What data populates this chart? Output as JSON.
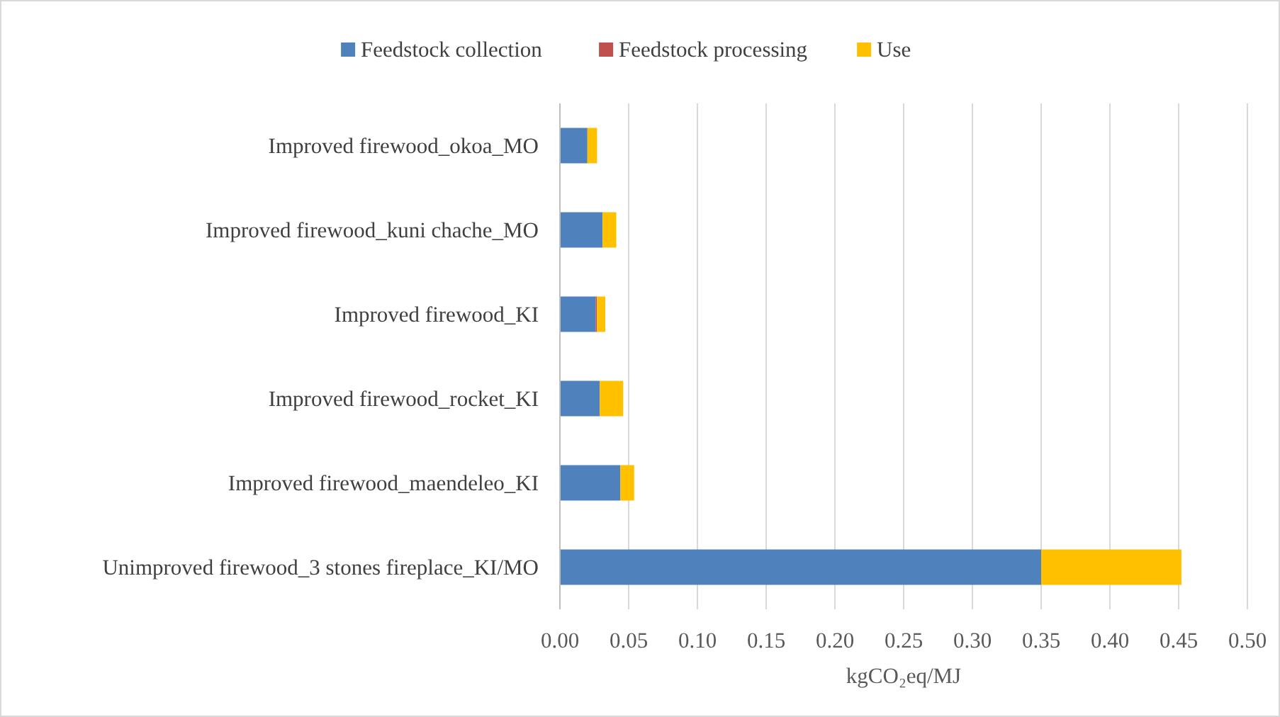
{
  "chart_data": {
    "type": "bar",
    "orientation": "horizontal",
    "stacked": true,
    "categories": [
      "Improved firewood_okoa_MO",
      "Improved firewood_kuni chache_MO",
      "Improved firewood_KI",
      "Improved firewood_rocket_KI",
      "Improved firewood_maendeleo_KI",
      "Unimproved firewood_3 stones fireplace_KI/MO"
    ],
    "series": [
      {
        "name": "Feedstock collection",
        "color": "#4f81bd",
        "values": [
          0.02,
          0.031,
          0.026,
          0.029,
          0.044,
          0.35
        ]
      },
      {
        "name": "Feedstock processing",
        "color": "#c0504d",
        "values": [
          0,
          0,
          0.001,
          0,
          0,
          0
        ]
      },
      {
        "name": "Use",
        "color": "#ffc000",
        "values": [
          0.007,
          0.01,
          0.006,
          0.017,
          0.01,
          0.102
        ]
      }
    ],
    "xlim": [
      0,
      0.5
    ],
    "xticks": [
      {
        "value": 0,
        "label": "0.00"
      },
      {
        "value": 0.05,
        "label": "0.05"
      },
      {
        "value": 0.1,
        "label": "0.10"
      },
      {
        "value": 0.15,
        "label": "0.15"
      },
      {
        "value": 0.2,
        "label": "0.20"
      },
      {
        "value": 0.25,
        "label": "0.25"
      },
      {
        "value": 0.3,
        "label": "0.30"
      },
      {
        "value": 0.35,
        "label": "0.35"
      },
      {
        "value": 0.4,
        "label": "0.40"
      },
      {
        "value": 0.45,
        "label": "0.45"
      },
      {
        "value": 0.5,
        "label": "0.50"
      }
    ],
    "xlabel": "kgCO₂eq/MJ",
    "grid": "x",
    "legend": "top"
  }
}
